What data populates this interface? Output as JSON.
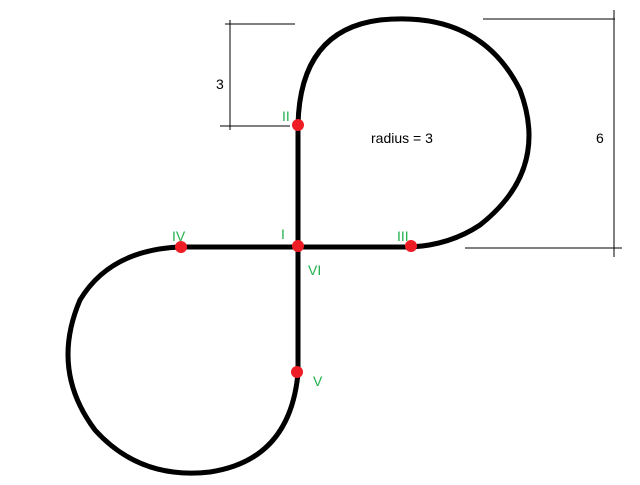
{
  "colors": {
    "path": "#000000",
    "point": "#ee1c24",
    "point_label": "#22b14c",
    "text": "#000000",
    "background": "#ffffff"
  },
  "annotations": {
    "radius_text": "radius = 3",
    "dim_small": "3",
    "dim_large": "6"
  },
  "points": [
    {
      "id": "I",
      "label": "I"
    },
    {
      "id": "II",
      "label": "II"
    },
    {
      "id": "III",
      "label": "III"
    },
    {
      "id": "IV",
      "label": "IV"
    },
    {
      "id": "V",
      "label": "V"
    },
    {
      "id": "VI",
      "label": "VI"
    }
  ]
}
